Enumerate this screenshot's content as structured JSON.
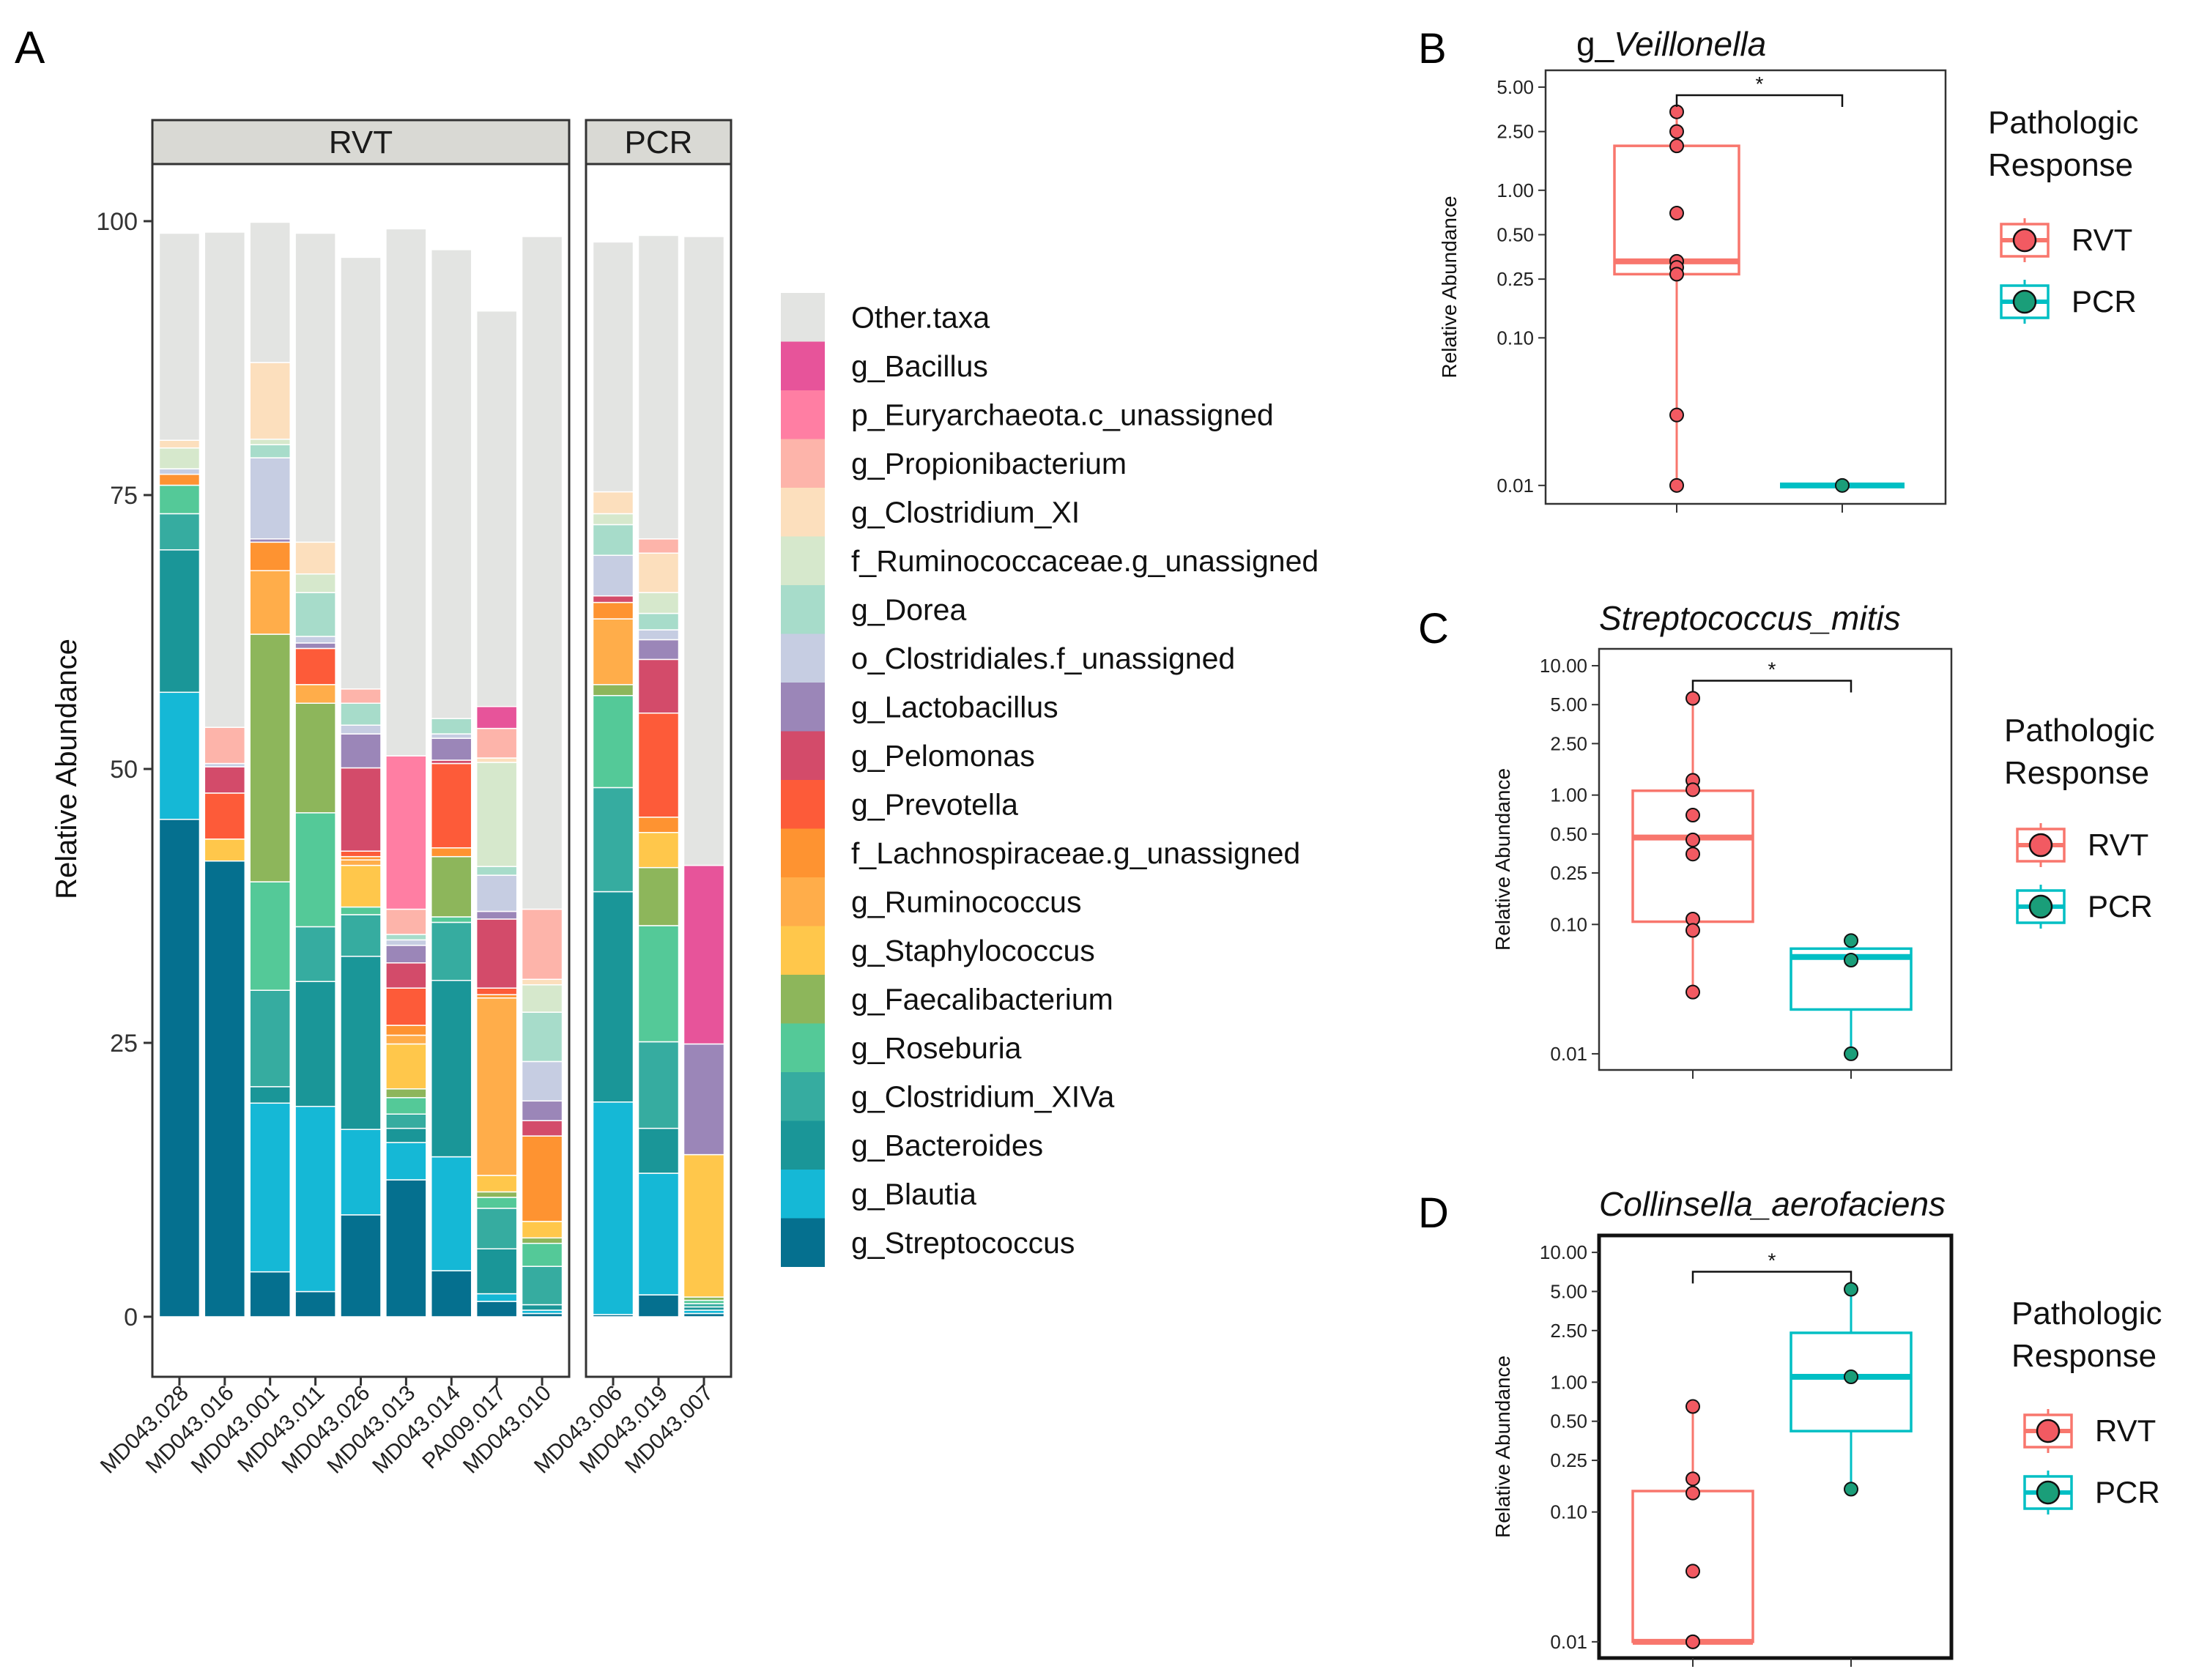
{
  "panel_labels": {
    "a": "A",
    "b": "B",
    "c": "C",
    "d": "D"
  },
  "colors": {
    "Other.taxa": "#e3e4e2",
    "g_Bacillus": "#e7549a",
    "p_Euryarchaeota.c_unassigned": "#ff7ea3",
    "g_Propionibacterium": "#fdb4aa",
    "g_Clostridium_XI": "#fcdfbd",
    "f_Ruminococcaceae.g_unassigned": "#d6e8cc",
    "g_Dorea": "#a7dcca",
    "o_Clostridiales.f_unassigned": "#c6cde2",
    "g_Lactobacillus": "#9b86b8",
    "g_Pelomonas": "#d34b6a",
    "g_Prevotella": "#fd5b39",
    "f_Lachnospiraceae.g_unassigned": "#fe9331",
    "g_Ruminococcus": "#ffad4a",
    "g_Staphylococcus": "#ffc74b",
    "g_Faecalibacterium": "#8db65b",
    "g_Roseburia": "#54c998",
    "g_Clostridium_XIVa": "#36aca0",
    "g_Bacteroides": "#1a9698",
    "g_Blautia": "#15b8d6",
    "g_Streptococcus": "#05708f",
    "rvt": "#f8766d",
    "pcr": "#00bfc4",
    "rvt_point": "#f25a62",
    "pcr_point": "#1a9e79"
  },
  "chart_data": [
    {
      "id": "A",
      "type": "bar",
      "stacked": true,
      "ylabel": "Relative Abundance",
      "ylim": [
        0,
        100
      ],
      "yticks": [
        0,
        25,
        50,
        75,
        100
      ],
      "facets": [
        {
          "label": "RVT",
          "categories": [
            "MD043.028",
            "MD043.016",
            "MD043.001",
            "MD043.011",
            "MD043.026",
            "MD043.013",
            "MD043.014",
            "PA009.017",
            "MD043.010"
          ]
        },
        {
          "label": "PCR",
          "categories": [
            "MD043.006",
            "MD043.019",
            "MD043.007"
          ]
        }
      ],
      "legend": [
        "Other.taxa",
        "g_Bacillus",
        "p_Euryarchaeota.c_unassigned",
        "g_Propionibacterium",
        "g_Clostridium_XI",
        "f_Ruminococcaceae.g_unassigned",
        "g_Dorea",
        "o_Clostridiales.f_unassigned",
        "g_Lactobacillus",
        "g_Pelomonas",
        "g_Prevotella",
        "f_Lachnospiraceae.g_unassigned",
        "g_Ruminococcus",
        "g_Staphylococcus",
        "g_Faecalibacterium",
        "g_Roseburia",
        "g_Clostridium_XIVa",
        "g_Bacteroides",
        "g_Blautia",
        "g_Streptococcus"
      ],
      "stack_order": [
        "g_Streptococcus",
        "g_Blautia",
        "g_Bacteroides",
        "g_Clostridium_XIVa",
        "g_Roseburia",
        "g_Faecalibacterium",
        "g_Staphylococcus",
        "g_Ruminococcus",
        "f_Lachnospiraceae.g_unassigned",
        "g_Prevotella",
        "g_Pelomonas",
        "g_Lactobacillus",
        "o_Clostridiales.f_unassigned",
        "g_Dorea",
        "f_Ruminococcaceae.g_unassigned",
        "g_Clostridium_XI",
        "g_Propionibacterium",
        "p_Euryarchaeota.c_unassigned",
        "g_Bacillus",
        "Other.taxa"
      ],
      "series": [
        {
          "name": "g_Streptococcus",
          "values": [
            45.4,
            41.6,
            4.1,
            2.3,
            9.3,
            12.5,
            4.2,
            1.4,
            0.3,
            0.2,
            2.0,
            0.3
          ]
        },
        {
          "name": "g_Blautia",
          "values": [
            11.6,
            0,
            15.4,
            16.9,
            7.8,
            3.4,
            10.4,
            0.7,
            0.3,
            19.4,
            11.1,
            0.3
          ]
        },
        {
          "name": "g_Bacteroides",
          "values": [
            13.0,
            0,
            1.5,
            11.4,
            15.8,
            1.3,
            16.1,
            4.1,
            0.5,
            19.2,
            4.1,
            0.3
          ]
        },
        {
          "name": "g_Clostridium_XIVa",
          "values": [
            3.3,
            0,
            8.8,
            5.0,
            3.8,
            1.3,
            5.3,
            3.7,
            3.5,
            9.5,
            7.9,
            0.3
          ]
        },
        {
          "name": "g_Roseburia",
          "values": [
            2.6,
            0,
            9.9,
            10.4,
            0.7,
            1.5,
            0.5,
            1.0,
            2.1,
            8.4,
            10.6,
            0.3
          ]
        },
        {
          "name": "g_Faecalibacterium",
          "values": [
            0,
            0,
            22.6,
            10.0,
            0,
            0.8,
            5.5,
            0.5,
            0.5,
            1.0,
            5.3,
            0.3
          ]
        },
        {
          "name": "g_Staphylococcus",
          "values": [
            0,
            2.0,
            0,
            0,
            3.8,
            4.1,
            0,
            1.5,
            1.5,
            0,
            3.2,
            13.0
          ]
        },
        {
          "name": "g_Ruminococcus",
          "values": [
            0,
            0,
            5.8,
            1.7,
            0.5,
            0.8,
            0,
            16.2,
            0,
            6.0,
            0,
            0
          ]
        },
        {
          "name": "f_Lachnospiraceae.g_unassigned",
          "values": [
            1.0,
            0,
            2.6,
            0,
            0.3,
            0.9,
            0.8,
            0.3,
            7.8,
            1.5,
            1.4,
            0
          ]
        },
        {
          "name": "g_Prevotella",
          "values": [
            0,
            4.2,
            0,
            3.3,
            0.5,
            3.4,
            7.7,
            0.6,
            0,
            0,
            9.5,
            0
          ]
        },
        {
          "name": "g_Pelomonas",
          "values": [
            0,
            2.4,
            0,
            0,
            7.6,
            2.3,
            0.3,
            6.3,
            1.4,
            0.6,
            4.9,
            0
          ]
        },
        {
          "name": "g_Lactobacillus",
          "values": [
            0,
            0,
            0.3,
            0.5,
            3.1,
            1.6,
            2.0,
            0.7,
            1.8,
            0,
            1.8,
            10.1
          ]
        },
        {
          "name": "o_Clostridiales.f_unassigned",
          "values": [
            0.5,
            0.3,
            7.4,
            0.6,
            0.8,
            0.5,
            0.4,
            3.3,
            3.6,
            3.7,
            0.9,
            0
          ]
        },
        {
          "name": "g_Dorea",
          "values": [
            0,
            0,
            1.2,
            4.0,
            2.0,
            0.5,
            1.4,
            0.8,
            4.5,
            2.8,
            1.5,
            0
          ]
        },
        {
          "name": "f_Ruminococcaceae.g_unassigned",
          "values": [
            1.9,
            0,
            0.5,
            1.7,
            0,
            0,
            0,
            9.5,
            2.5,
            1.0,
            1.9,
            0
          ]
        },
        {
          "name": "g_Clostridium_XI",
          "values": [
            0.7,
            0,
            7.0,
            2.9,
            0,
            0,
            0,
            0.4,
            0.5,
            2.0,
            3.6,
            0
          ]
        },
        {
          "name": "g_Propionibacterium",
          "values": [
            0,
            3.3,
            0,
            0,
            1.3,
            2.3,
            0,
            2.7,
            6.4,
            0,
            1.3,
            0
          ]
        },
        {
          "name": "p_Euryarchaeota.c_unassigned",
          "values": [
            0,
            0,
            0,
            0,
            0,
            14.0,
            0,
            0,
            0,
            0,
            0,
            0
          ]
        },
        {
          "name": "g_Bacillus",
          "values": [
            0,
            0,
            0,
            0,
            0,
            0,
            0,
            2.0,
            0,
            0,
            0,
            16.3
          ]
        },
        {
          "name": "Other.taxa",
          "values": [
            18.9,
            45.2,
            12.8,
            28.2,
            39.4,
            48.1,
            42.8,
            36.1,
            61.4,
            22.8,
            27.7,
            57.4
          ]
        }
      ]
    },
    {
      "id": "B",
      "type": "scatter",
      "subtype": "boxplot",
      "title_prefix": "g_",
      "title_italic": "Veillonella",
      "ylabel": "Relative Abundance",
      "yscale": "log",
      "ylim": [
        0.0075,
        6.5
      ],
      "yticks": [
        0.01,
        0.1,
        0.25,
        0.5,
        1.0,
        2.5,
        5.0
      ],
      "ytick_labels": [
        "0.01",
        "0.10",
        "0.25",
        "0.50",
        "1.00",
        "2.50",
        "5.00"
      ],
      "significance": "*",
      "groups": [
        {
          "name": "RVT",
          "points": [
            3.4,
            2.5,
            2.0,
            0.7,
            0.33,
            0.3,
            0.27,
            0.03,
            0.01
          ],
          "box": {
            "q1": 0.27,
            "median": 0.33,
            "q3": 2.0,
            "lo": 0.01,
            "hi": 3.4
          }
        },
        {
          "name": "PCR",
          "points": [
            0.01
          ],
          "box": {
            "q1": 0.01,
            "median": 0.01,
            "q3": 0.01,
            "lo": 0.01,
            "hi": 0.01
          }
        }
      ],
      "legend_title": [
        "Pathologic",
        "Response"
      ],
      "legend": [
        "RVT",
        "PCR"
      ]
    },
    {
      "id": "C",
      "type": "scatter",
      "subtype": "boxplot",
      "title_prefix": "",
      "title_italic": "Streptococcus_mitis",
      "ylabel": "Relative Abundance",
      "yscale": "log",
      "ylim": [
        0.0075,
        13.5
      ],
      "yticks": [
        0.01,
        0.1,
        0.25,
        0.5,
        1.0,
        2.5,
        5.0,
        10.0
      ],
      "ytick_labels": [
        "0.01",
        "0.10",
        "0.25",
        "0.50",
        "1.00",
        "2.50",
        "5.00",
        "10.00"
      ],
      "significance": "*",
      "groups": [
        {
          "name": "RVT",
          "points": [
            5.6,
            1.3,
            1.1,
            0.7,
            0.45,
            0.35,
            0.11,
            0.09,
            0.03
          ],
          "box": {
            "q1": 0.105,
            "median": 0.47,
            "q3": 1.08,
            "lo": 0.03,
            "hi": 5.6
          }
        },
        {
          "name": "PCR",
          "points": [
            0.075,
            0.053,
            0.01
          ],
          "box": {
            "q1": 0.022,
            "median": 0.056,
            "q3": 0.065,
            "lo": 0.01,
            "hi": 0.075
          }
        }
      ],
      "legend_title": [
        "Pathologic",
        "Response"
      ],
      "legend": [
        "RVT",
        "PCR"
      ]
    },
    {
      "id": "D",
      "type": "scatter",
      "subtype": "boxplot",
      "title_prefix": "",
      "title_italic": "Collinsella_aerofaciens",
      "ylabel": "Relative Abundance",
      "yscale": "log",
      "ylim": [
        0.0075,
        13.5
      ],
      "yticks": [
        0.01,
        0.1,
        0.25,
        0.5,
        1.0,
        2.5,
        5.0,
        10.0
      ],
      "ytick_labels": [
        "0.01",
        "0.10",
        "0.25",
        "0.50",
        "1.00",
        "2.50",
        "5.00",
        "10.00"
      ],
      "significance": "*",
      "groups": [
        {
          "name": "RVT",
          "points": [
            0.65,
            0.18,
            0.14,
            0.035,
            0.01,
            0.01
          ],
          "box": {
            "q1": 0.01,
            "median": 0.01,
            "q3": 0.145,
            "lo": 0.01,
            "hi": 0.65
          }
        },
        {
          "name": "PCR",
          "points": [
            5.2,
            1.1,
            0.15
          ],
          "box": {
            "q1": 0.42,
            "median": 1.1,
            "q3": 2.4,
            "lo": 0.15,
            "hi": 5.2
          }
        }
      ],
      "legend_title": [
        "Pathologic",
        "Response"
      ],
      "legend": [
        "RVT",
        "PCR"
      ]
    }
  ]
}
